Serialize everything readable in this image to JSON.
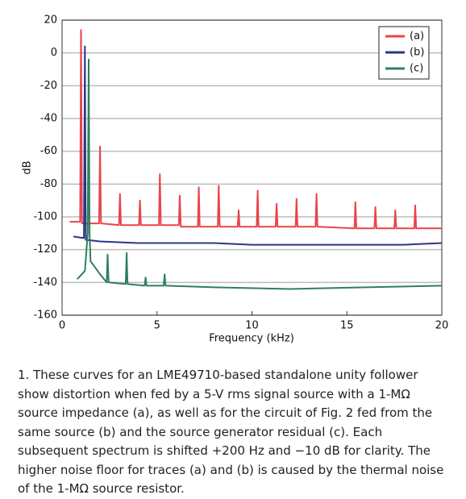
{
  "chart_data": {
    "type": "line",
    "ylabel": "dB",
    "xlabel": "Frequency (kHz)",
    "xlim": [
      0,
      20
    ],
    "xticks": [
      0,
      5,
      10,
      15,
      20
    ],
    "ylim": [
      -160,
      20
    ],
    "yticks": [
      -160,
      -140,
      -120,
      -100,
      -80,
      -60,
      -40,
      -20,
      0,
      20
    ],
    "grid": true,
    "legend": "upper right",
    "series": [
      {
        "name": "(a)",
        "color": "#e8444a",
        "x": [
          0.4,
          0.95,
          1.0,
          1.05,
          1.95,
          2.0,
          2.05,
          3.0,
          3.05,
          3.1,
          4.05,
          4.1,
          4.15,
          5.1,
          5.15,
          5.2,
          6.15,
          6.2,
          6.25,
          7.15,
          7.2,
          7.25,
          8.2,
          8.25,
          8.3,
          9.25,
          9.3,
          9.35,
          10.25,
          10.3,
          10.35,
          11.25,
          11.3,
          11.35,
          12.3,
          12.35,
          12.4,
          13.35,
          13.4,
          13.45,
          15.4,
          15.45,
          15.5,
          16.45,
          16.5,
          16.55,
          17.5,
          17.55,
          17.6,
          18.55,
          18.6,
          18.65,
          20
        ],
        "values": [
          -103,
          -103,
          14,
          -104,
          -104,
          -57,
          -104,
          -105,
          -86,
          -105,
          -105,
          -90,
          -105,
          -105,
          -74,
          -105,
          -105,
          -87,
          -106,
          -106,
          -82,
          -106,
          -106,
          -81,
          -106,
          -106,
          -96,
          -106,
          -106,
          -84,
          -106,
          -106,
          -92,
          -106,
          -106,
          -89,
          -106,
          -106,
          -86,
          -106,
          -107,
          -91,
          -107,
          -107,
          -94,
          -107,
          -107,
          -96,
          -107,
          -107,
          -93,
          -107,
          -107
        ]
      },
      {
        "name": "(b)",
        "color": "#2e3486",
        "x": [
          0.6,
          1.15,
          1.2,
          1.25,
          2,
          4,
          6,
          8,
          10,
          12,
          14,
          16,
          18,
          20
        ],
        "values": [
          -112,
          -113,
          4,
          -114,
          -115,
          -116,
          -116,
          -116,
          -117,
          -117,
          -117,
          -117,
          -117,
          -116
        ]
      },
      {
        "name": "(c)",
        "color": "#2f7f5e",
        "x": [
          0.8,
          1.2,
          1.35,
          1.4,
          1.45,
          1.5,
          2,
          2.35,
          2.4,
          2.45,
          3.35,
          3.4,
          3.45,
          4.35,
          4.4,
          4.45,
          5.35,
          5.4,
          5.45,
          8,
          12,
          16,
          20
        ],
        "values": [
          -138,
          -133,
          -110,
          -4,
          -110,
          -127,
          -135,
          -140,
          -123,
          -140,
          -141,
          -122,
          -141,
          -142,
          -137,
          -142,
          -142,
          -135,
          -142,
          -143,
          -144,
          -143,
          -142
        ]
      }
    ],
    "caption": "1. These curves for an LME49710-based standalone unity follower show distortion when fed by a 5-V rms signal source with a 1-MΩ source impedance (a), as well as for the circuit of Fig. 2 fed from the same source (b) and the source generator residual (c). Each subsequent spectrum is shifted +200 Hz and −10 dB for clarity. The higher noise floor for traces (a) and (b) is caused by the thermal noise of the 1-MΩ source resistor."
  }
}
